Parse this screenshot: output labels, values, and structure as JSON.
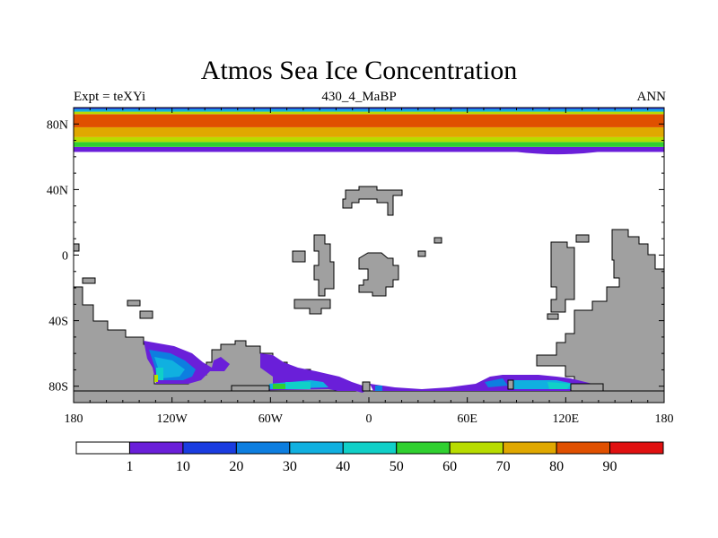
{
  "title": "Atmos Sea Ice Concentration",
  "left_string": "Expt = teXYi",
  "center_string": "430_4_MaBP",
  "right_string": "ANN",
  "colors": {
    "land": "#a0a0a0",
    "ice_levels": [
      "#ffffff",
      "#6a1fd9",
      "#1a3ce0",
      "#0d7ee0",
      "#10b0e0",
      "#10d0c8",
      "#30d030",
      "#b8dc00",
      "#e0a800",
      "#e05000",
      "#e01010"
    ]
  },
  "chart_data": {
    "type": "heatmap",
    "title": "Atmos Sea Ice Concentration",
    "x_ticks": [
      "180",
      "120W",
      "60W",
      "0",
      "60E",
      "120E",
      "180"
    ],
    "y_ticks": [
      "80N",
      "40N",
      "0",
      "40S",
      "80S"
    ],
    "xlim": [
      -180,
      180
    ],
    "ylim": [
      -90,
      90
    ],
    "colorbar_levels": [
      "1",
      "10",
      "20",
      "30",
      "40",
      "50",
      "60",
      "70",
      "80",
      "90"
    ],
    "north_ice_bands": [
      {
        "lat_min": 63,
        "value": 1
      },
      {
        "lat_min": 66,
        "value": 50
      },
      {
        "lat_min": 69,
        "value": 60
      },
      {
        "lat_min": 72,
        "value": 70
      },
      {
        "lat_min": 78,
        "value": 80
      },
      {
        "lat_min": 86,
        "value": 60
      },
      {
        "lat_min": 87.5,
        "value": 30
      },
      {
        "lat_min": 89,
        "value": 10
      }
    ]
  }
}
